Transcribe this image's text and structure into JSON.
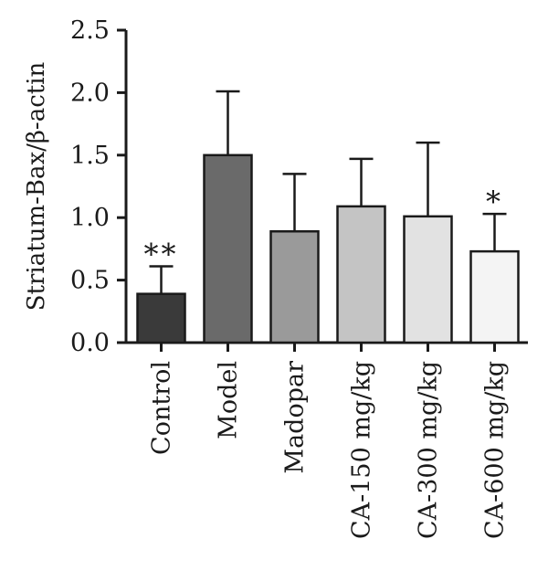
{
  "chart_data": {
    "type": "bar",
    "categories": [
      "Control",
      "Model",
      "Madopar",
      "CA-150 mg/kg",
      "CA-300 mg/kg",
      "CA-600 mg/kg"
    ],
    "values": [
      0.39,
      1.5,
      0.89,
      1.09,
      1.01,
      0.73
    ],
    "errors": [
      0.22,
      0.51,
      0.46,
      0.38,
      0.59,
      0.3
    ],
    "annotations": [
      "**",
      "",
      "",
      "",
      "",
      "*"
    ],
    "bar_colors": [
      "#3a3a3a",
      "#6a6a6a",
      "#9a9a9a",
      "#c4c4c4",
      "#e2e2e2",
      "#f4f4f4"
    ],
    "ylabel": "Striatum-Bax/β-actin",
    "ylim": [
      0,
      2.5
    ],
    "yticks": [
      "0.0",
      "0.5",
      "1.0",
      "1.5",
      "2.0",
      "2.5"
    ],
    "grid": false
  }
}
